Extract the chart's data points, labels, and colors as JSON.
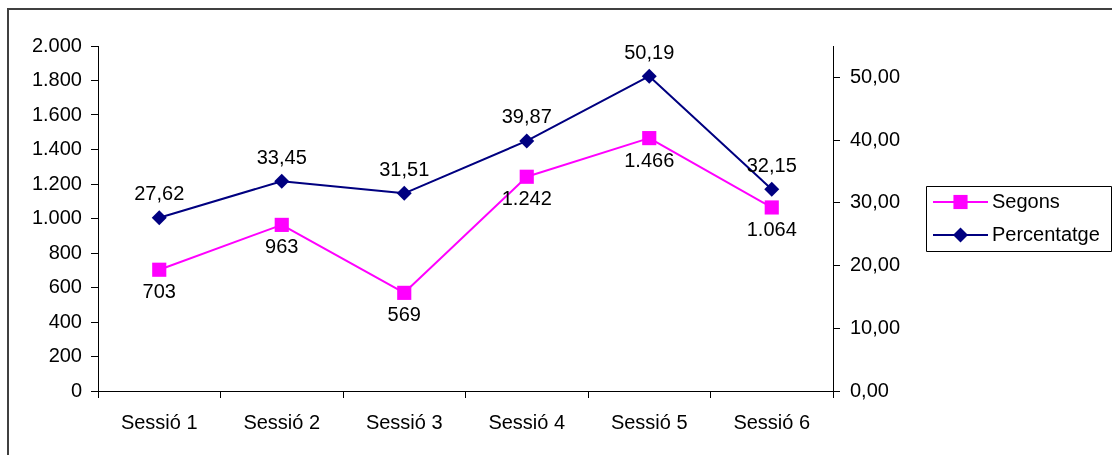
{
  "chart_data": {
    "type": "line",
    "categories": [
      "Sessió 1",
      "Sessió 2",
      "Sessió 3",
      "Sessió 4",
      "Sessió 5",
      "Sessió 6"
    ],
    "series": [
      {
        "name": "Segons",
        "color": "#ff00ff",
        "marker": "square",
        "values": [
          703,
          963,
          569,
          1242,
          1466,
          1064
        ],
        "value_labels": [
          "703",
          "963",
          "569",
          "1.242",
          "1.466",
          "1.064"
        ]
      },
      {
        "name": "Percentatge",
        "color": "#000080",
        "marker": "diamond",
        "axis": "y2",
        "values": [
          27.62,
          33.45,
          31.51,
          39.87,
          50.19,
          32.15
        ],
        "value_labels": [
          "27,62",
          "33,45",
          "31,51",
          "39,87",
          "50,19",
          "32,15"
        ]
      }
    ],
    "ylim": [
      0,
      2000
    ],
    "yticks": [
      0,
      200,
      400,
      600,
      800,
      {
        "value": 1000,
        "label": "1.000"
      },
      {
        "value": 1200,
        "label": "1.200"
      },
      {
        "value": 1400,
        "label": "1.400"
      },
      {
        "value": 1600,
        "label": "1.600"
      },
      {
        "value": 1800,
        "label": "1.800"
      },
      {
        "value": 2000,
        "label": "2.000"
      }
    ],
    "y2lim": [
      0,
      55
    ],
    "y2ticks": [
      {
        "value": 0,
        "label": "0,00"
      },
      {
        "value": 10,
        "label": "10,00"
      },
      {
        "value": 20,
        "label": "20,00"
      },
      {
        "value": 30,
        "label": "30,00"
      },
      {
        "value": 40,
        "label": "40,00"
      },
      {
        "value": 50,
        "label": "50,00"
      }
    ],
    "grid": false,
    "legend": "right",
    "line_style": "solid"
  }
}
